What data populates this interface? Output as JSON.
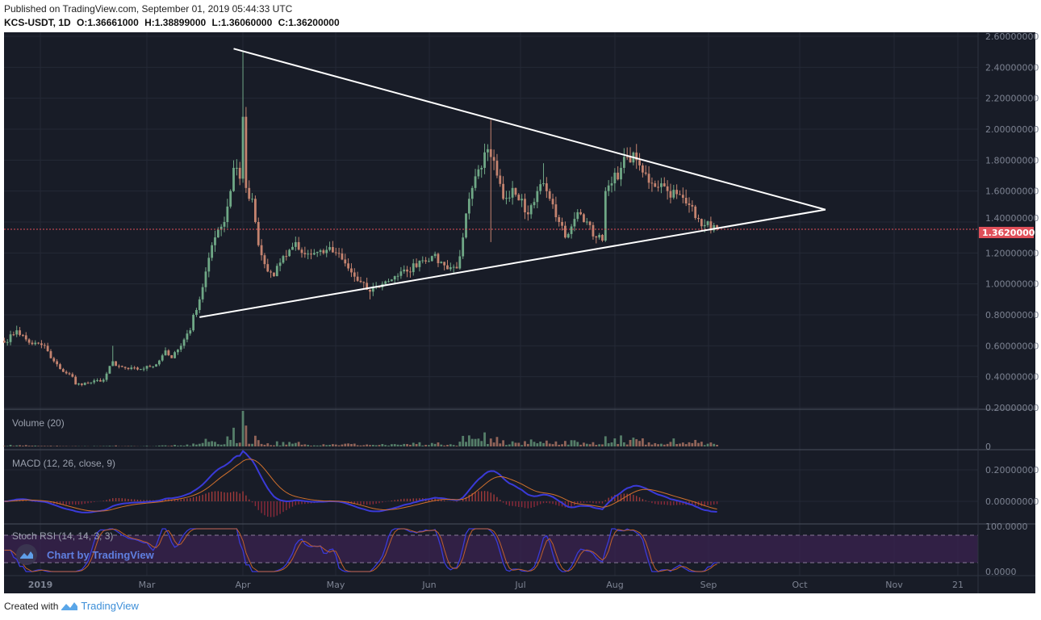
{
  "header": {
    "published": "Published on TradingView.com, September 01, 2019 05:44:33 UTC",
    "symbol": "KCS-USDT, 1D",
    "open": "O:1.36661000",
    "high": "H:1.38899000",
    "low": "L:1.36060000",
    "close": "C:1.36200000"
  },
  "footer": {
    "created_with": "Created with",
    "brand": "TradingView"
  },
  "watermark": "Chart by TradingView",
  "colors": {
    "background": "#181c27",
    "grid": "#242936",
    "up": "#6fa886",
    "down": "#c4836f",
    "last_price": "#e0505a",
    "macd": "#3a3ad8",
    "signal": "#d0702c",
    "stoch_k": "#3a3ad8",
    "stoch_d": "#c0602c",
    "stoch_band": "#3a2150"
  },
  "chart_data": {
    "type": "candlestick",
    "title": "KCS-USDT, 1D",
    "price_axis": {
      "ticks": [
        "2.60000000",
        "2.40000000",
        "2.20000000",
        "2.00000000",
        "1.80000000",
        "1.60000000",
        "1.40000000",
        "1.20000000",
        "1.00000000",
        "0.80000000",
        "0.60000000",
        "0.40000000",
        "0.20000000"
      ],
      "range": [
        0.2,
        2.6
      ]
    },
    "last_price": "1.36200000",
    "time_axis": {
      "ticks": [
        "2019",
        "Mar",
        "Apr",
        "May",
        "Jun",
        "Jul",
        "Aug",
        "Sep",
        "Oct",
        "Nov",
        "21"
      ]
    },
    "close_keypoints": [
      [
        "2019-01-14",
        0.62
      ],
      [
        "2019-01-18",
        0.7
      ],
      [
        "2019-01-22",
        0.62
      ],
      [
        "2019-01-27",
        0.6
      ],
      [
        "2019-01-29",
        0.52
      ],
      [
        "2019-02-01",
        0.45
      ],
      [
        "2019-02-05",
        0.4
      ],
      [
        "2019-02-06",
        0.35
      ],
      [
        "2019-02-10",
        0.36
      ],
      [
        "2019-02-15",
        0.38
      ],
      [
        "2019-02-18",
        0.5
      ],
      [
        "2019-02-19",
        0.47
      ],
      [
        "2019-02-23",
        0.45
      ],
      [
        "2019-02-27",
        0.45
      ],
      [
        "2019-03-04",
        0.48
      ],
      [
        "2019-03-07",
        0.57
      ],
      [
        "2019-03-09",
        0.52
      ],
      [
        "2019-03-12",
        0.6
      ],
      [
        "2019-03-15",
        0.7
      ],
      [
        "2019-03-16",
        0.8
      ],
      [
        "2019-03-18",
        0.9
      ],
      [
        "2019-03-20",
        1.08
      ],
      [
        "2019-03-22",
        1.25
      ],
      [
        "2019-03-24",
        1.35
      ],
      [
        "2019-03-26",
        1.4
      ],
      [
        "2019-03-27",
        1.5
      ],
      [
        "2019-03-29",
        1.75
      ],
      [
        "2019-03-31",
        1.68
      ],
      [
        "2019-04-01",
        2.08
      ],
      [
        "2019-04-02",
        1.62
      ],
      [
        "2019-04-04",
        1.55
      ],
      [
        "2019-04-05",
        1.4
      ],
      [
        "2019-04-06",
        1.25
      ],
      [
        "2019-04-09",
        1.08
      ],
      [
        "2019-04-11",
        1.05
      ],
      [
        "2019-04-14",
        1.18
      ],
      [
        "2019-04-16",
        1.22
      ],
      [
        "2019-04-18",
        1.27
      ],
      [
        "2019-04-20",
        1.2
      ],
      [
        "2019-04-24",
        1.2
      ],
      [
        "2019-04-28",
        1.22
      ],
      [
        "2019-05-01",
        1.2
      ],
      [
        "2019-05-05",
        1.1
      ],
      [
        "2019-05-08",
        1.02
      ],
      [
        "2019-05-12",
        0.95
      ],
      [
        "2019-05-14",
        0.98
      ],
      [
        "2019-05-16",
        1.0
      ],
      [
        "2019-05-20",
        1.05
      ],
      [
        "2019-05-24",
        1.08
      ],
      [
        "2019-05-28",
        1.15
      ],
      [
        "2019-06-01",
        1.18
      ],
      [
        "2019-06-05",
        1.12
      ],
      [
        "2019-06-09",
        1.1
      ],
      [
        "2019-06-11",
        1.3
      ],
      [
        "2019-06-13",
        1.55
      ],
      [
        "2019-06-14",
        1.62
      ],
      [
        "2019-06-17",
        1.75
      ],
      [
        "2019-06-18",
        1.85
      ],
      [
        "2019-06-20",
        1.82
      ],
      [
        "2019-06-22",
        1.7
      ],
      [
        "2019-06-24",
        1.55
      ],
      [
        "2019-06-27",
        1.62
      ],
      [
        "2019-06-30",
        1.55
      ],
      [
        "2019-07-02",
        1.45
      ],
      [
        "2019-07-05",
        1.6
      ],
      [
        "2019-07-07",
        1.65
      ],
      [
        "2019-07-09",
        1.55
      ],
      [
        "2019-07-12",
        1.4
      ],
      [
        "2019-07-14",
        1.3
      ],
      [
        "2019-07-17",
        1.42
      ],
      [
        "2019-07-19",
        1.45
      ],
      [
        "2019-07-22",
        1.38
      ],
      [
        "2019-07-24",
        1.3
      ],
      [
        "2019-07-26",
        1.28
      ],
      [
        "2019-07-27",
        1.6
      ],
      [
        "2019-07-29",
        1.65
      ],
      [
        "2019-08-01",
        1.75
      ],
      [
        "2019-08-03",
        1.82
      ],
      [
        "2019-08-06",
        1.8
      ],
      [
        "2019-08-08",
        1.72
      ],
      [
        "2019-08-11",
        1.65
      ],
      [
        "2019-08-14",
        1.65
      ],
      [
        "2019-08-16",
        1.6
      ],
      [
        "2019-08-19",
        1.58
      ],
      [
        "2019-08-22",
        1.52
      ],
      [
        "2019-08-24",
        1.5
      ],
      [
        "2019-08-26",
        1.42
      ],
      [
        "2019-08-28",
        1.38
      ],
      [
        "2019-09-01",
        1.362
      ]
    ],
    "wick_extremes": [
      {
        "date": "2019-01-18",
        "high": 0.73
      },
      {
        "date": "2019-02-18",
        "high": 0.6
      },
      {
        "date": "2019-04-01",
        "high": 2.5
      },
      {
        "date": "2019-06-20",
        "high": 2.06,
        "low": 1.27
      },
      {
        "date": "2019-07-07",
        "high": 1.78
      },
      {
        "date": "2019-05-12",
        "low": 0.9
      }
    ],
    "trendlines": [
      {
        "from": [
          "2019-03-29",
          2.52
        ],
        "to": [
          "2019-10-06",
          1.48
        ]
      },
      {
        "from": [
          "2019-03-18",
          0.785
        ],
        "to": [
          "2019-10-06",
          1.48
        ]
      }
    ],
    "indicators": {
      "volume": {
        "label": "Volume (20)",
        "axis_ticks": [
          "0"
        ]
      },
      "macd": {
        "label": "MACD (12, 26, close, 9)",
        "axis_ticks": [
          "0.20000000",
          "0.00000000"
        ]
      },
      "stoch_rsi": {
        "label": "Stoch RSI (14, 14, 3, 3)",
        "axis_ticks": [
          "100.0000",
          "0.0000"
        ],
        "bands": [
          80,
          20
        ]
      }
    }
  }
}
